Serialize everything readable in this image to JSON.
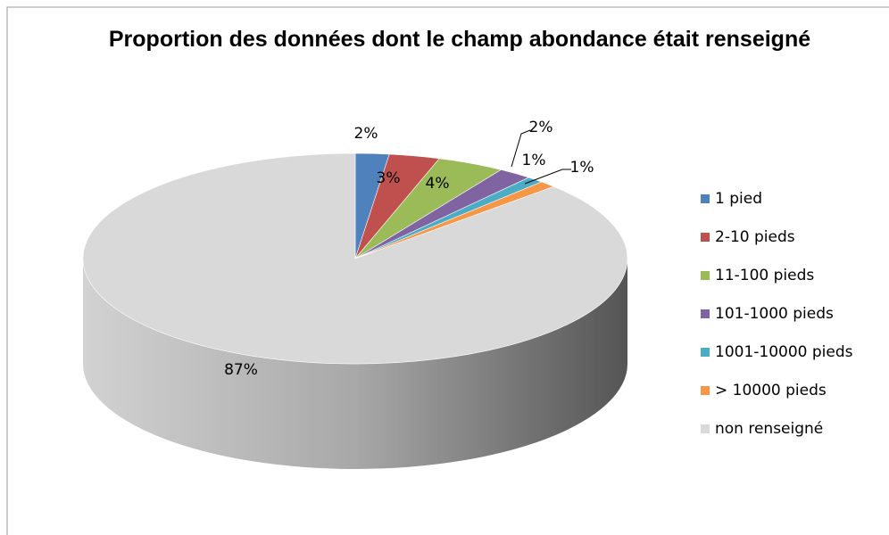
{
  "chart_data": {
    "type": "pie3d",
    "title": "Proportion des données dont le champ abondance était renseigné",
    "categories": [
      "1 pied",
      "2-10 pieds",
      "11-100 pieds",
      "101-1000 pieds",
      "1001-10000 pieds",
      "> 10000 pieds",
      "non renseigné"
    ],
    "values": [
      2,
      3,
      4,
      2,
      1,
      1,
      87
    ],
    "value_labels": [
      "2%",
      "3%",
      "4%",
      "2%",
      "1%",
      "1%",
      "87%"
    ],
    "colors": [
      "#4f81bd",
      "#c0504d",
      "#9bbb59",
      "#8064a2",
      "#4bacc6",
      "#f79646",
      "#d9d9d9"
    ],
    "legend": "right"
  }
}
